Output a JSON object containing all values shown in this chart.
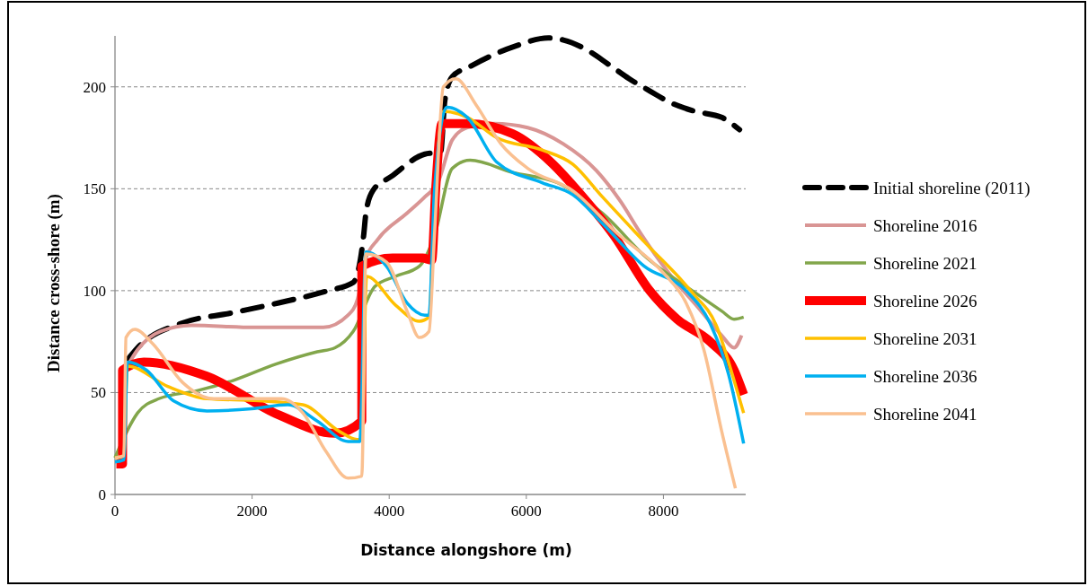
{
  "chart_data": {
    "type": "line",
    "xlabel": "Distance alongshore (m)",
    "ylabel": "Distance cross-shore (m)",
    "xlim": [
      0,
      9200
    ],
    "xticks": [
      0,
      2000,
      4000,
      6000,
      8000
    ],
    "ylim": [
      0,
      225
    ],
    "yticks": [
      0,
      50,
      100,
      150,
      200
    ],
    "grid": "y",
    "legend": "right",
    "series": [
      {
        "name": "Initial shoreline (2011)",
        "color": "#000000",
        "line_style": "dashed",
        "x": [
          180,
          330,
          970,
          1690,
          2390,
          3110,
          3475,
          3630,
          3660,
          3760,
          4030,
          4520,
          4750,
          4810,
          4920,
          5180,
          5840,
          6320,
          6540,
          6890,
          7200,
          7500,
          7800,
          8120,
          8460,
          8850,
          9110
        ],
        "values": [
          66,
          72,
          84,
          89,
          94,
          100,
          104,
          128,
          138,
          149,
          156,
          167,
          168,
          193,
          205,
          210,
          220,
          224,
          223,
          218,
          211,
          204,
          198,
          192,
          188,
          185,
          179
        ]
      },
      {
        "name": "Shoreline 2016",
        "color": "#d99594",
        "x": [
          180,
          330,
          660,
          1115,
          2030,
          3040,
          3400,
          3540,
          3650,
          3830,
          4260,
          4520,
          4710,
          4920,
          5140,
          5530,
          6020,
          6540,
          7020,
          7370,
          7670,
          8070,
          8550,
          8850,
          9030,
          9140
        ],
        "values": [
          63,
          71,
          80,
          83,
          82,
          82,
          88,
          96,
          115,
          125,
          138,
          146,
          153,
          174,
          180,
          182,
          180,
          172,
          159,
          144,
          128,
          109,
          90,
          78,
          72,
          78
        ]
      },
      {
        "name": "Shoreline 2021",
        "color": "#82a64b",
        "x": [
          0,
          160,
          330,
          640,
          1210,
          1730,
          2350,
          2950,
          3210,
          3475,
          3790,
          4090,
          4440,
          4660,
          4920,
          5180,
          5800,
          6450,
          7110,
          7760,
          8420,
          8850,
          9030,
          9170
        ],
        "values": [
          18,
          30,
          40,
          47,
          51,
          56,
          64,
          70,
          72,
          80,
          102,
          107,
          112,
          127,
          160,
          164,
          158,
          153,
          138,
          116,
          100,
          90,
          86,
          87
        ]
      },
      {
        "name": "Shoreline 2026",
        "color": "#ff0000",
        "x": [
          20,
          110,
          110,
          420,
          1340,
          2390,
          3210,
          3600,
          3600,
          4050,
          4490,
          4620,
          4680,
          4770,
          5140,
          5800,
          6360,
          6800,
          7280,
          7800,
          8200,
          8680,
          9030,
          9170
        ],
        "values": [
          15,
          15,
          61,
          65,
          58,
          39,
          30,
          36,
          112,
          116,
          116,
          115,
          151,
          182,
          182,
          177,
          163,
          147,
          127,
          100,
          86,
          75,
          61,
          49
        ]
      },
      {
        "name": "Shoreline 2031",
        "color": "#ffc000",
        "x": [
          0,
          130,
          180,
          770,
          1340,
          2090,
          2740,
          3270,
          3530,
          3600,
          3670,
          4090,
          4440,
          4580,
          4660,
          4790,
          5140,
          5570,
          6230,
          6680,
          7110,
          7720,
          8420,
          8770,
          9030,
          9170
        ],
        "values": [
          18,
          19,
          63,
          53,
          47,
          46,
          44,
          31,
          27,
          27,
          107,
          93,
          85,
          87,
          141,
          188,
          185,
          175,
          169,
          162,
          146,
          124,
          99,
          83,
          56,
          40
        ]
      },
      {
        "name": "Shoreline 2036",
        "color": "#00b0f0",
        "x": [
          0,
          130,
          180,
          460,
          850,
          1340,
          1990,
          2520,
          2950,
          3400,
          3570,
          3660,
          3960,
          4260,
          4520,
          4580,
          4660,
          4840,
          5140,
          5570,
          6230,
          6680,
          7110,
          7720,
          8330,
          8680,
          8950,
          9170
        ],
        "values": [
          16,
          17,
          65,
          61,
          46,
          41,
          42,
          44,
          36,
          26,
          26,
          119,
          112,
          94,
          88,
          88,
          149,
          190,
          185,
          163,
          153,
          147,
          133,
          112,
          100,
          84,
          59,
          25
        ]
      },
      {
        "name": "Shoreline 2041",
        "color": "#fac090",
        "x": [
          0,
          130,
          160,
          290,
          550,
          985,
          1430,
          2090,
          2430,
          2740,
          3080,
          3400,
          3600,
          3660,
          3960,
          4260,
          4440,
          4580,
          4660,
          4790,
          4970,
          5270,
          5630,
          6020,
          6680,
          7330,
          7990,
          8330,
          8590,
          8850,
          9050
        ],
        "values": [
          18,
          19,
          77,
          81,
          74,
          55,
          47,
          47,
          47,
          40,
          21,
          8,
          9,
          118,
          114,
          90,
          77,
          80,
          127,
          200,
          204,
          191,
          172,
          160,
          149,
          128,
          109,
          94,
          71,
          31,
          3
        ]
      }
    ]
  }
}
